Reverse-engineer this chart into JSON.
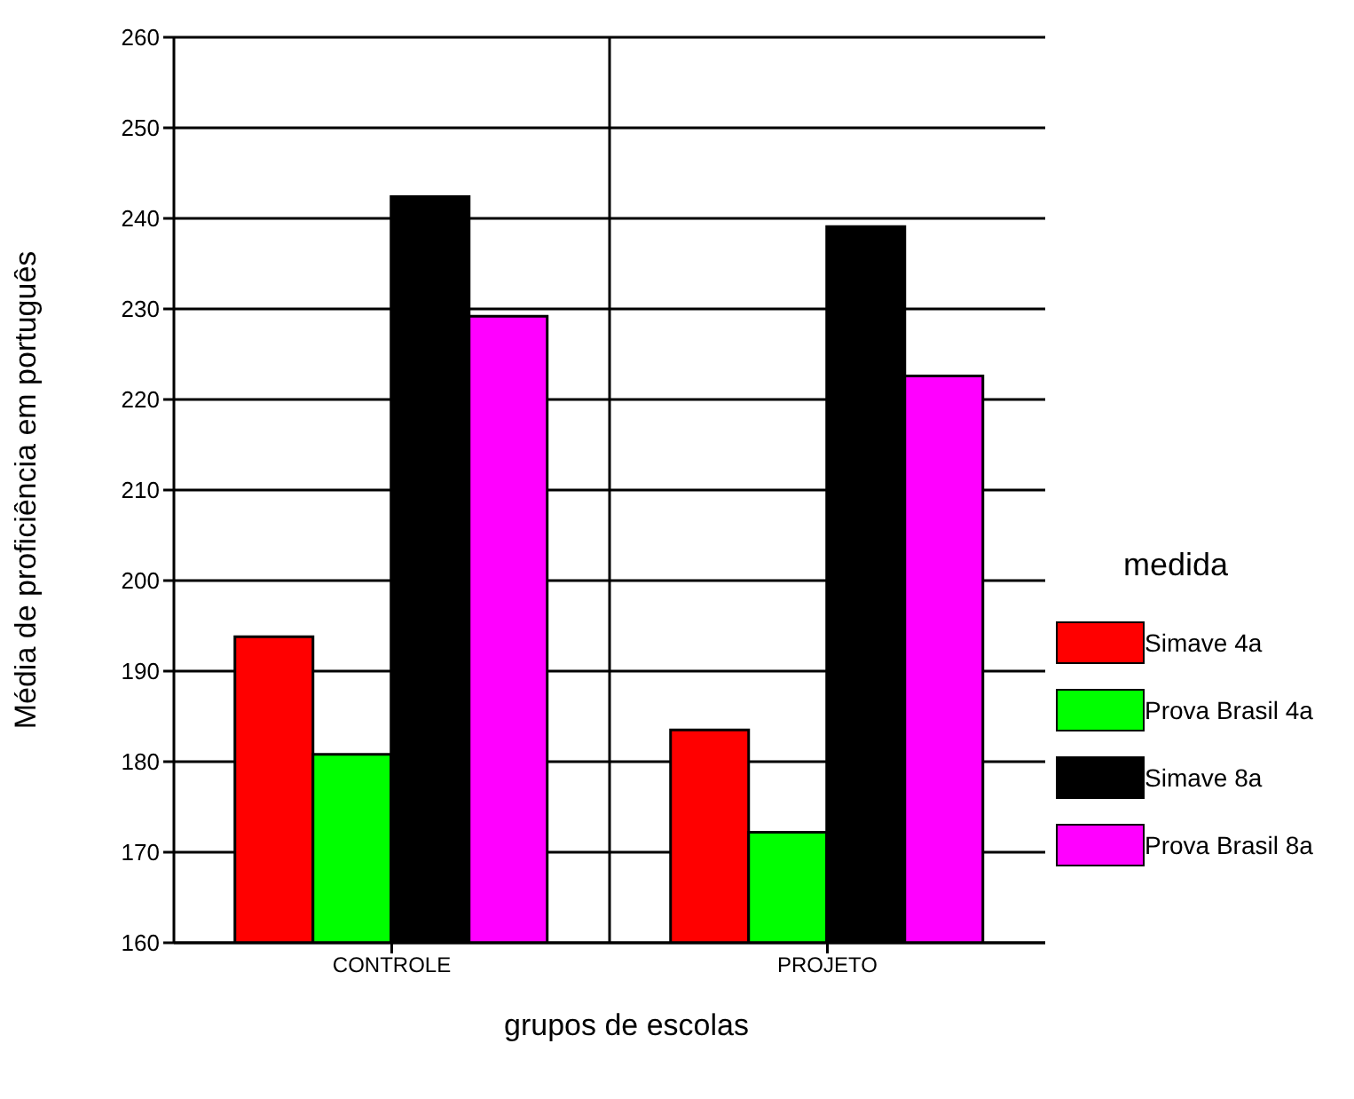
{
  "chart_data": {
    "type": "bar",
    "xlabel": "grupos de escolas",
    "ylabel": "Média de  proficiência em português",
    "legend_title": "medida",
    "categories": [
      "CONTROLE",
      "PROJETO"
    ],
    "series": [
      {
        "name": "Simave 4a",
        "color": "#ff0000",
        "values": [
          193.8,
          183.5
        ]
      },
      {
        "name": "Prova Brasil 4a",
        "color": "#00ff00",
        "values": [
          180.8,
          172.2
        ]
      },
      {
        "name": "Simave 8a",
        "color": "#000000",
        "values": [
          242.4,
          239.1
        ]
      },
      {
        "name": "Prova Brasil 8a",
        "color": "#ff00ff",
        "values": [
          229.2,
          222.6
        ]
      }
    ],
    "ylim": [
      160,
      260
    ],
    "yticks": [
      160,
      170,
      180,
      190,
      200,
      210,
      220,
      230,
      240,
      250,
      260
    ],
    "grid": true,
    "legend": "right"
  }
}
